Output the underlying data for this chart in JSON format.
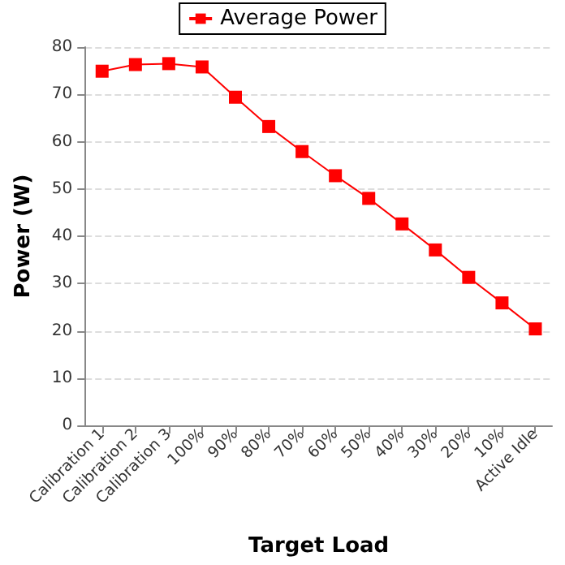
{
  "chart_data": {
    "type": "line",
    "xlabel": "Target Load",
    "ylabel": "Power (W)",
    "categories": [
      "Calibration 1",
      "Calibration 2",
      "Calibration 3",
      "100%",
      "90%",
      "80%",
      "70%",
      "60%",
      "50%",
      "40%",
      "30%",
      "20%",
      "10%",
      "Active Idle"
    ],
    "series": [
      {
        "name": "Average Power",
        "color": "#ff0000",
        "values": [
          74.9,
          76.3,
          76.5,
          75.8,
          69.4,
          63.2,
          57.9,
          52.8,
          48.0,
          42.6,
          37.1,
          31.3,
          25.9,
          20.4
        ]
      }
    ],
    "ylim": [
      0,
      80
    ],
    "yticks": [
      0,
      10,
      20,
      30,
      40,
      50,
      60,
      70,
      80
    ],
    "grid": "y",
    "legend": "top",
    "marker": "square",
    "line_style": "solid"
  }
}
